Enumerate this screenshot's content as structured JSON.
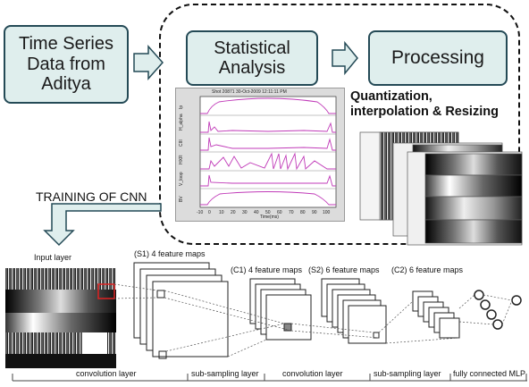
{
  "boxes": {
    "time_series": "Time Series\nData from\nAditya",
    "statistical": "Statistical\nAnalysis",
    "processing": "Processing"
  },
  "quantization": "Quantization,\ninterpolation & Resizing",
  "training": "TRAINING OF CNN",
  "plot": {
    "header": "Shot    20871    30-Oct-2009 12:11:11 PM",
    "xlabel": "Time(ms)",
    "xticks": [
      "-10",
      "0",
      "10",
      "20",
      "30",
      "40",
      "50",
      "60",
      "70",
      "80",
      "90",
      "100"
    ],
    "ylabels": [
      "Ip",
      "H_alpha",
      "CIII",
      "HXR",
      "V_loop",
      "BV"
    ]
  },
  "cnn": {
    "input_layer": "Input layer",
    "s1": "(S1) 4 feature maps",
    "c1": "(C1) 4 feature maps",
    "s2": "(S2) 6 feature maps",
    "c2": "(C2) 6 feature maps"
  },
  "bottom": {
    "convolution_1": "convolution layer",
    "subsampling_1": "sub-sampling layer",
    "convolution_2": "convolution layer",
    "subsampling_2": "sub-sampling layer",
    "mlp": "fully connected MLP"
  },
  "colors": {
    "box_fill": "#dfeeed",
    "box_border": "#244a56",
    "plot_magenta": "#c03ab8"
  }
}
